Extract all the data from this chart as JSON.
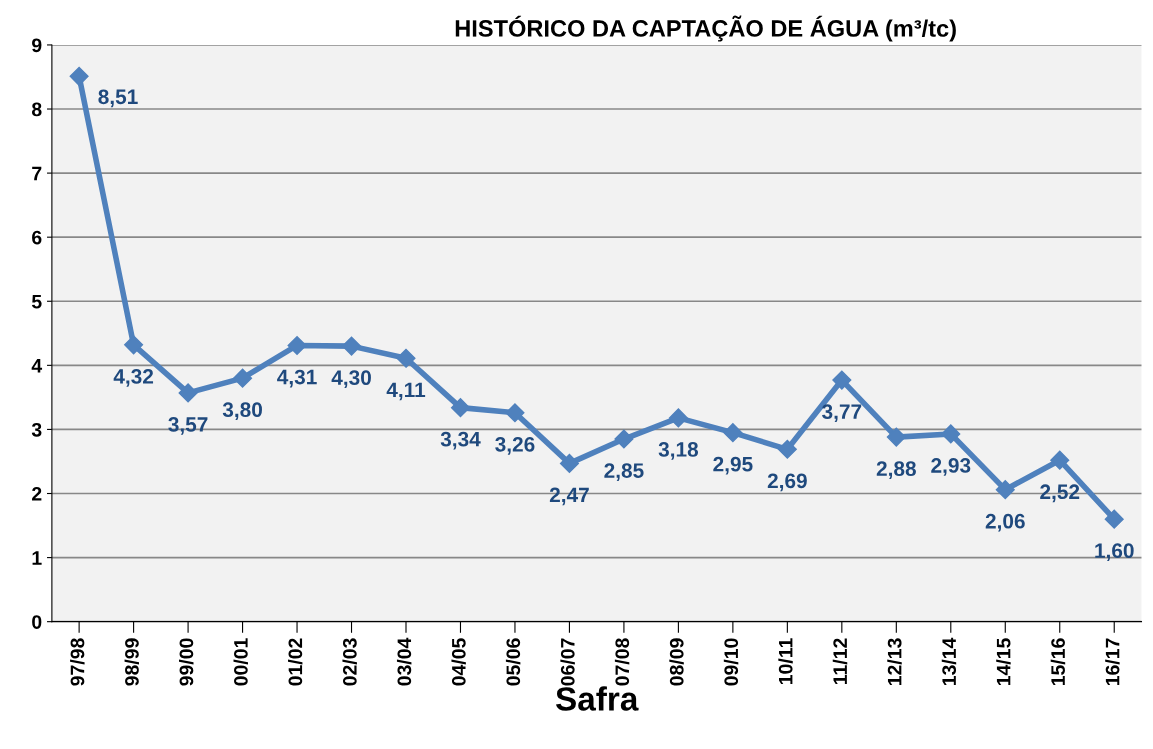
{
  "chart_data": {
    "type": "line",
    "title": "HISTÓRICO DA CAPTAÇÃO DE ÁGUA (m³/tc)",
    "xlabel": "Safra",
    "categories": [
      "97/98",
      "98/99",
      "99/00",
      "00/01",
      "01/02",
      "02/03",
      "03/04",
      "04/05",
      "05/06",
      "06/07",
      "07/08",
      "08/09",
      "09/10",
      "10/11",
      "11/12",
      "12/13",
      "13/14",
      "14/15",
      "15/16",
      "16/17"
    ],
    "series": [
      {
        "color": "#4f81bd",
        "values": [
          8.51,
          4.32,
          3.57,
          3.8,
          4.31,
          4.3,
          4.11,
          3.34,
          3.26,
          2.47,
          2.85,
          3.18,
          2.95,
          2.69,
          3.77,
          2.88,
          2.93,
          2.06,
          2.52,
          1.6
        ],
        "value_labels": [
          "8,51",
          "4,32",
          "3,57",
          "3,80",
          "4,31",
          "4,30",
          "4,11",
          "3,34",
          "3,26",
          "2,47",
          "2,85",
          "3,18",
          "2,95",
          "2,69",
          "3,77",
          "2,88",
          "2,93",
          "2,06",
          "2,52",
          "1,60"
        ]
      }
    ],
    "ylim": [
      0,
      9
    ],
    "yticks": [
      0,
      1,
      2,
      3,
      4,
      5,
      6,
      7,
      8,
      9
    ],
    "grid": "y",
    "marker": "diamond",
    "line_style": "solid",
    "legend": false
  }
}
